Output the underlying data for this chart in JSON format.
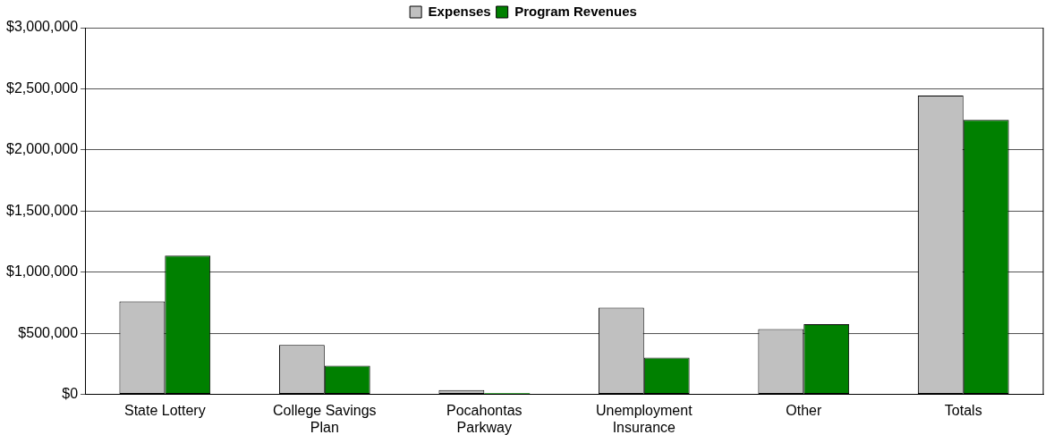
{
  "chart_data": {
    "type": "bar",
    "categories": [
      "State Lottery",
      "College Savings Plan",
      "Pocahontas Parkway",
      "Unemployment Insurance",
      "Other",
      "Totals"
    ],
    "series": [
      {
        "name": "Expenses",
        "color": "#c0c0c0",
        "values": [
          760000,
          405000,
          35000,
          710000,
          535000,
          2445000
        ]
      },
      {
        "name": "Program Revenues",
        "color": "#008000",
        "values": [
          1135000,
          235000,
          10000,
          300000,
          575000,
          2245000
        ]
      }
    ],
    "ylim": [
      0,
      3000000
    ],
    "yticks": [
      {
        "value": 0,
        "label": "$0"
      },
      {
        "value": 500000,
        "label": "$500,000"
      },
      {
        "value": 1000000,
        "label": "$1,000,000"
      },
      {
        "value": 1500000,
        "label": "$1,500,000"
      },
      {
        "value": 2000000,
        "label": "$2,000,000"
      },
      {
        "value": 2500000,
        "label": "$2,500,000"
      },
      {
        "value": 3000000,
        "label": "$3,000,000"
      }
    ],
    "grid": "y",
    "legend": "top"
  }
}
